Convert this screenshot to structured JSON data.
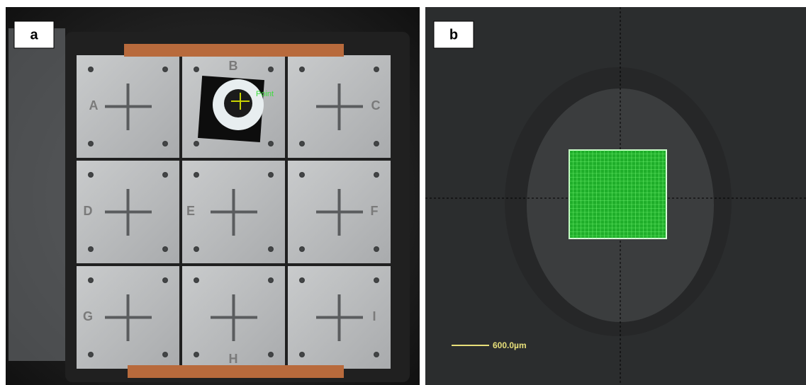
{
  "panels": [
    {
      "label": "a",
      "plates": [
        "A",
        "B",
        "C",
        "D",
        "E",
        "F",
        "G",
        "H",
        "I"
      ],
      "marker_label": "Point"
    },
    {
      "label": "b",
      "scale_bar": "600.0µm"
    }
  ]
}
